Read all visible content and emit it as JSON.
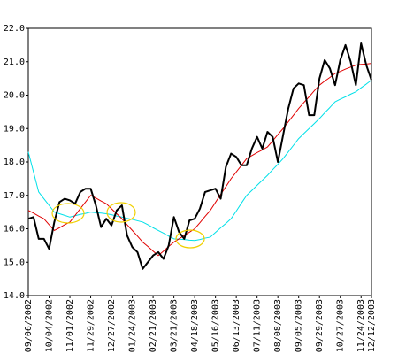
{
  "chart_data": {
    "type": "line",
    "categories": [
      "09/06/2002",
      null,
      null,
      null,
      "10/04/2002",
      null,
      null,
      null,
      "11/01/2002",
      null,
      null,
      null,
      "11/29/2002",
      null,
      null,
      null,
      "12/27/2002",
      null,
      null,
      null,
      "01/24/2003",
      null,
      null,
      null,
      "02/21/2003",
      null,
      null,
      null,
      "03/21/2003",
      null,
      null,
      null,
      "04/18/2003",
      null,
      null,
      null,
      "05/16/2003",
      null,
      null,
      null,
      "06/13/2003",
      null,
      null,
      null,
      "07/11/2003",
      null,
      null,
      null,
      "08/08/2003",
      null,
      null,
      null,
      "09/05/2003",
      null,
      null,
      null,
      "09/29/2003",
      null,
      null,
      null,
      "10/27/2003",
      null,
      null,
      null,
      "11/24/2003",
      null,
      "12/12/2003"
    ],
    "series": [
      {
        "color": "#00e0e8",
        "width": 1,
        "values": [
          18.3,
          17.7,
          17.1,
          16.9,
          16.7,
          16.5,
          16.45,
          16.4,
          16.35,
          16.39,
          16.43,
          16.46,
          16.5,
          16.48,
          16.47,
          16.45,
          16.42,
          16.38,
          16.35,
          16.31,
          16.28,
          16.24,
          16.2,
          16.12,
          16.03,
          15.95,
          15.87,
          15.78,
          15.7,
          15.69,
          15.68,
          15.66,
          15.65,
          15.68,
          15.72,
          15.75,
          15.89,
          16.03,
          16.16,
          16.3,
          16.53,
          16.77,
          17.0,
          17.15,
          17.3,
          17.45,
          17.6,
          17.77,
          17.93,
          18.1,
          18.3,
          18.5,
          18.7,
          18.85,
          19.0,
          19.15,
          19.3,
          19.47,
          19.63,
          19.8,
          19.88,
          19.95,
          20.03,
          20.1,
          20.22,
          20.33,
          20.45
        ]
      },
      {
        "color": "#e00000",
        "width": 1,
        "values": [
          16.55,
          16.47,
          16.38,
          16.3,
          16.12,
          15.95,
          16.03,
          16.12,
          16.2,
          16.4,
          16.6,
          16.8,
          17.0,
          16.92,
          16.83,
          16.75,
          16.6,
          16.45,
          16.3,
          16.12,
          15.95,
          15.78,
          15.6,
          15.47,
          15.33,
          15.2,
          15.33,
          15.47,
          15.6,
          15.7,
          15.8,
          15.9,
          16.0,
          16.18,
          16.37,
          16.55,
          16.79,
          17.03,
          17.26,
          17.5,
          17.7,
          17.9,
          18.1,
          18.19,
          18.28,
          18.36,
          18.45,
          18.63,
          18.82,
          19.0,
          19.2,
          19.4,
          19.6,
          19.78,
          19.95,
          20.13,
          20.3,
          20.42,
          20.53,
          20.65,
          20.71,
          20.78,
          20.84,
          20.9,
          20.92,
          20.93,
          20.95
        ]
      },
      {
        "color": "#000000",
        "width": 2,
        "values": [
          16.3,
          16.35,
          15.7,
          15.7,
          15.4,
          16.2,
          16.8,
          16.9,
          16.85,
          16.75,
          17.1,
          17.2,
          17.2,
          16.7,
          16.05,
          16.3,
          16.1,
          16.55,
          16.7,
          15.8,
          15.45,
          15.3,
          14.8,
          15.0,
          15.2,
          15.3,
          15.1,
          15.5,
          16.35,
          15.9,
          15.7,
          16.25,
          16.3,
          16.6,
          17.1,
          17.15,
          17.2,
          16.9,
          17.85,
          18.25,
          18.15,
          17.9,
          17.9,
          18.4,
          18.75,
          18.4,
          18.9,
          18.75,
          18.0,
          18.8,
          19.6,
          20.2,
          20.35,
          20.3,
          19.4,
          19.4,
          20.5,
          21.05,
          20.8,
          20.3,
          21.05,
          21.5,
          21.0,
          20.3,
          21.55,
          20.9,
          20.45
        ]
      }
    ],
    "ylim": [
      14,
      22
    ],
    "yticks": [
      {
        "value": 14,
        "label": "14.0"
      },
      {
        "value": 15,
        "label": "15.0"
      },
      {
        "value": 16,
        "label": "16.0"
      },
      {
        "value": 17,
        "label": "17.0"
      },
      {
        "value": 18,
        "label": "18.0"
      },
      {
        "value": 19,
        "label": "19.0"
      },
      {
        "value": 20,
        "label": "20.0"
      },
      {
        "value": 21,
        "label": "21.0"
      },
      {
        "value": 22,
        "label": "22.0"
      }
    ],
    "grid": false
  }
}
